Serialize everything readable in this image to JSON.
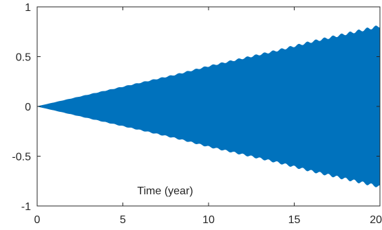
{
  "chart_data": {
    "type": "line",
    "title": "",
    "xlabel": "Time (year)",
    "ylabel": "",
    "xlim": [
      0,
      20
    ],
    "ylim": [
      -1,
      1
    ],
    "x_ticks": [
      0,
      5,
      10,
      15,
      20
    ],
    "y_ticks": [
      -1,
      -0.5,
      0,
      0.5,
      1
    ],
    "x_tick_labels": [
      "0",
      "5",
      "10",
      "15",
      "20"
    ],
    "y_tick_labels": [
      "-1",
      "-0.5",
      "0",
      "0.5",
      "1"
    ],
    "grid": false,
    "series": [
      {
        "color": "#0072BD",
        "envelope": {
          "x": [
            0,
            2,
            4,
            6,
            8,
            10,
            12,
            14,
            16,
            18,
            20
          ],
          "upper": [
            0.0,
            0.08,
            0.16,
            0.24,
            0.32,
            0.41,
            0.49,
            0.57,
            0.66,
            0.74,
            0.82
          ],
          "lower": [
            0.0,
            -0.08,
            -0.16,
            -0.24,
            -0.32,
            -0.41,
            -0.49,
            -0.57,
            -0.66,
            -0.74,
            -0.82
          ]
        },
        "envelope_ripple_per_year": 2
      }
    ]
  }
}
